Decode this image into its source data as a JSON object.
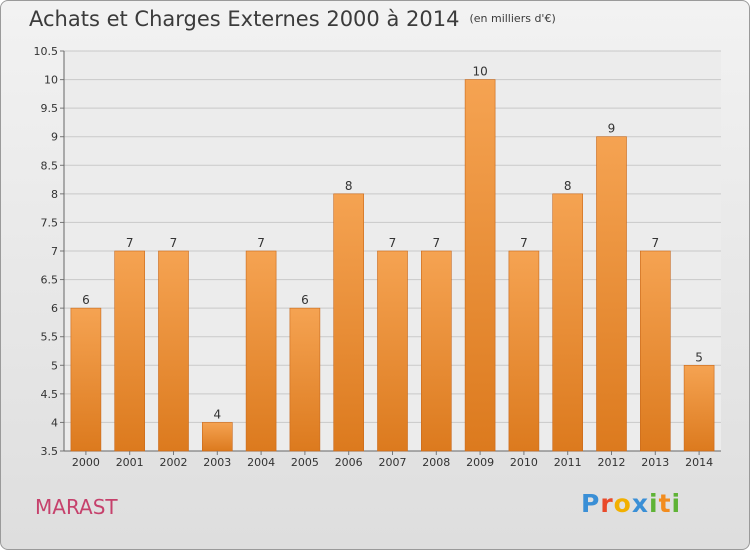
{
  "title": "Achats et Charges Externes 2000 à 2014",
  "unit_note": "(en milliers d'€)",
  "commune": "MARAST",
  "brand": {
    "letters": [
      {
        "char": "P",
        "color": "#3a8fd6"
      },
      {
        "char": "r",
        "color": "#e94a2a"
      },
      {
        "char": "o",
        "color": "#f2b000"
      },
      {
        "char": "x",
        "color": "#3a8fd6"
      },
      {
        "char": "i",
        "color": "#5fb336"
      },
      {
        "char": "t",
        "color": "#f28c1e"
      },
      {
        "char": "i",
        "color": "#5fb336"
      }
    ]
  },
  "colors": {
    "bar_top": "#f5a352",
    "bar_bottom": "#dc7a1e",
    "bar_edge": "#c8681a",
    "title": "#3b3b3b",
    "commune": "#c6416c",
    "grid": "#c9c9c9"
  },
  "chart_data": {
    "type": "bar",
    "categories": [
      "2000",
      "2001",
      "2002",
      "2003",
      "2004",
      "2005",
      "2006",
      "2007",
      "2008",
      "2009",
      "2010",
      "2011",
      "2012",
      "2013",
      "2014"
    ],
    "values": [
      6,
      7,
      7,
      4,
      7,
      6,
      8,
      7,
      7,
      10,
      7,
      8,
      9,
      7,
      5
    ],
    "value_labels": [
      "6",
      "7",
      "7",
      "4",
      "7",
      "6",
      "8",
      "7",
      "7",
      "10",
      "7",
      "8",
      "9",
      "7",
      "5"
    ],
    "ylim": [
      3.5,
      10.5
    ],
    "yticks": [
      "3.5",
      "4",
      "4.5",
      "5",
      "5.5",
      "6",
      "6.5",
      "7",
      "7.5",
      "8",
      "8.5",
      "9",
      "9.5",
      "10",
      "10.5"
    ],
    "grid": true
  }
}
